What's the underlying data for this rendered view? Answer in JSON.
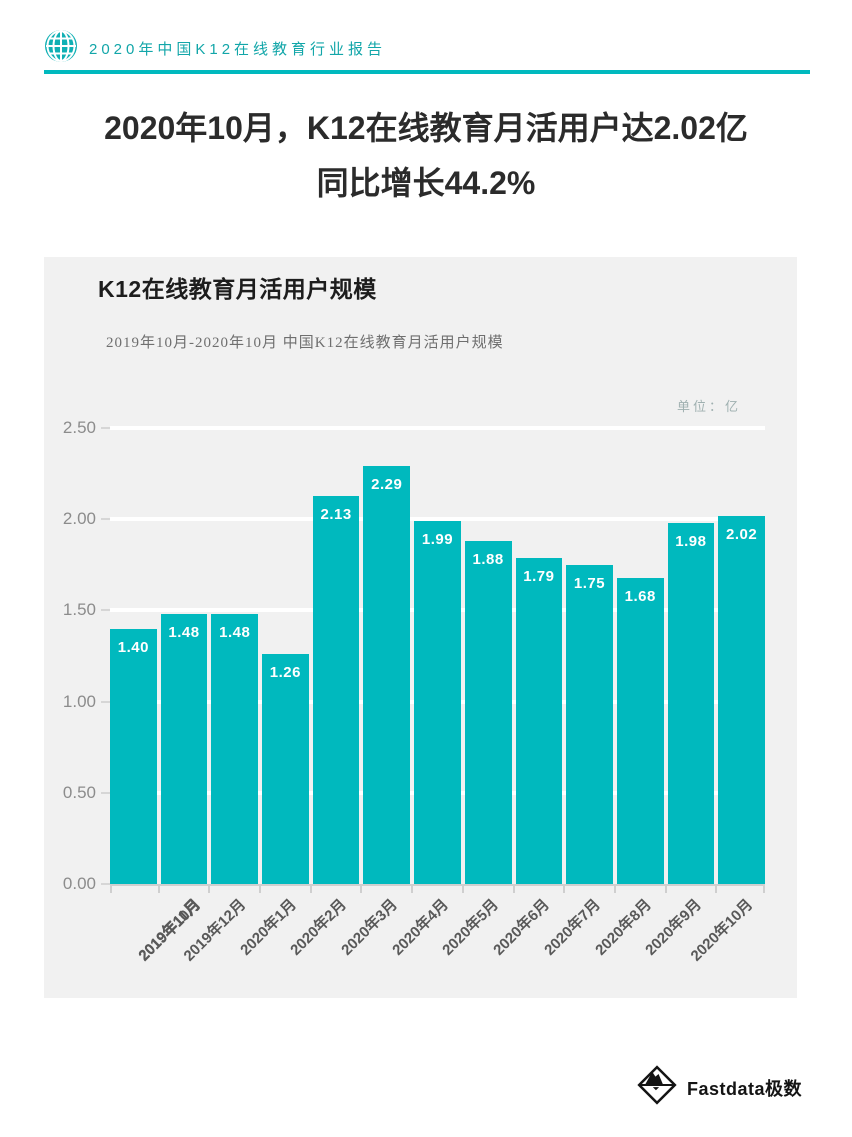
{
  "header": {
    "report_title": "2020年中国K12在线教育行业报告"
  },
  "main_title": {
    "line1": "2020年10月，K12在线教育月活用户达2.02亿",
    "line2": "同比增长44.2%"
  },
  "panel": {
    "chart_title": "K12在线教育月活用户规模",
    "chart_subtitle": "2019年10月-2020年10月 中国K12在线教育月活用户规模",
    "unit_label": "单位：亿"
  },
  "chart_data": {
    "type": "bar",
    "title": "K12在线教育月活用户规模",
    "subtitle": "2019年10月-2020年10月 中国K12在线教育月活用户规模",
    "unit": "亿",
    "categories": [
      "2019年10月",
      "2019年11月",
      "2019年12月",
      "2020年1月",
      "2020年2月",
      "2020年3月",
      "2020年4月",
      "2020年5月",
      "2020年6月",
      "2020年7月",
      "2020年8月",
      "2020年9月",
      "2020年10月"
    ],
    "values": [
      1.4,
      1.48,
      1.48,
      1.26,
      2.13,
      2.29,
      1.99,
      1.88,
      1.79,
      1.75,
      1.68,
      1.98,
      2.02
    ],
    "value_labels": [
      "1.40",
      "1.48",
      "1.48",
      "1.26",
      "2.13",
      "2.29",
      "1.99",
      "1.88",
      "1.79",
      "1.75",
      "1.68",
      "1.98",
      "2.02"
    ],
    "yticks": [
      2.5,
      2.0,
      1.5,
      1.0,
      0.5,
      0.0
    ],
    "ytick_labels": [
      "2.50",
      "2.00",
      "1.50",
      "1.00",
      "0.50",
      "0.00"
    ],
    "ylim": [
      0,
      2.5
    ],
    "xlabel": "",
    "ylabel": "",
    "grid": true,
    "legend_position": "none",
    "bar_color": "#00b9be"
  },
  "footer": {
    "brand": "Fastdata极数"
  },
  "colors": {
    "accent_teal": "#00b9be",
    "panel_background": "#f1f1f1",
    "gridline": "#ffffff",
    "value_label": "#ffffff",
    "axis_text": "#8c8c8c",
    "category_text": "#595959"
  }
}
